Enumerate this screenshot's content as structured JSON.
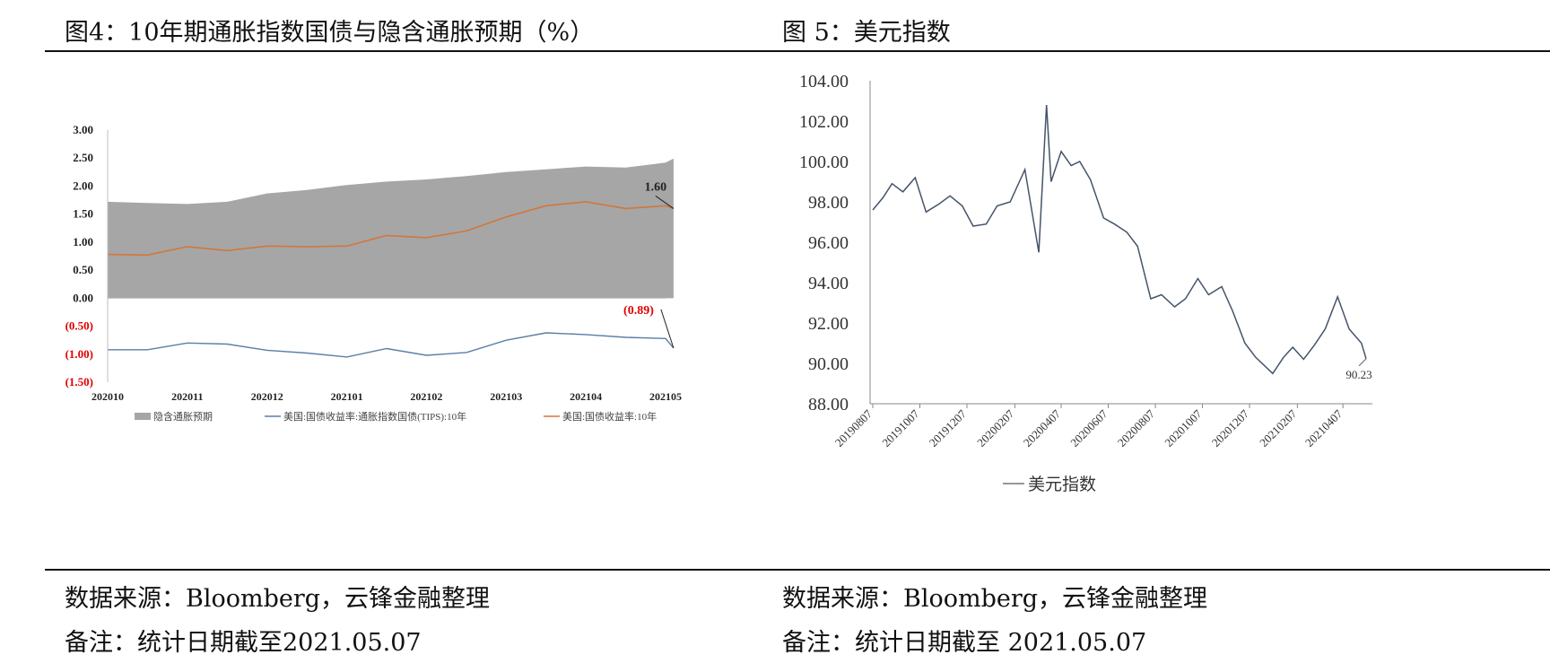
{
  "left": {
    "title": "图4：10年期通胀指数国债与隐含通胀预期（%）",
    "source": "数据来源：Bloomberg，云锋金融整理",
    "remark": "备注：统计日期截至2021.05.07"
  },
  "right": {
    "title": "图 5：美元指数",
    "source": "数据来源：Bloomberg，云锋金融整理",
    "remark": "备注：统计日期截至 2021.05.07"
  },
  "colors": {
    "area": "#a6a6a6",
    "nominal": "#d0783c",
    "tips": "#5b7fa6",
    "dxy": "#44546a",
    "negative_label": "#e00000"
  },
  "chart_data": [
    {
      "type": "area",
      "title": "",
      "ylim": [
        -1.5,
        3.0
      ],
      "y_ticks": [
        "3.00",
        "2.50",
        "2.00",
        "1.50",
        "1.00",
        "0.50",
        "0.00",
        "(0.50)",
        "(1.00)",
        "(1.50)"
      ],
      "x_ticks": [
        "202010",
        "202011",
        "202012",
        "202101",
        "202102",
        "202103",
        "202104",
        "202105"
      ],
      "legend": [
        "隐含通胀预期",
        "美国:国债收益率:通胀指数国债(TIPS):10年",
        "美国:国债收益率:10年"
      ],
      "legend_position": "bottom",
      "annotations": {
        "last_nominal": "1.60",
        "last_tips": "(0.89)"
      },
      "series": [
        {
          "name": "隐含通胀预期",
          "x": [
            "202010",
            "202010.5",
            "202011",
            "202011.5",
            "202012",
            "202012.5",
            "202101",
            "202101.5",
            "202102",
            "202102.5",
            "202103",
            "202103.5",
            "202104",
            "202104.5",
            "202105",
            "202105.1"
          ],
          "values": [
            1.72,
            1.7,
            1.68,
            1.72,
            1.87,
            1.93,
            2.02,
            2.08,
            2.12,
            2.18,
            2.25,
            2.3,
            2.35,
            2.33,
            2.42,
            2.49
          ]
        },
        {
          "name": "美国:国债收益率:10年",
          "x": [
            "202010",
            "202010.5",
            "202011",
            "202011.5",
            "202012",
            "202012.5",
            "202101",
            "202101.5",
            "202102",
            "202102.5",
            "202103",
            "202103.5",
            "202104",
            "202104.5",
            "202105",
            "202105.1"
          ],
          "values": [
            0.78,
            0.77,
            0.92,
            0.85,
            0.93,
            0.92,
            0.93,
            1.12,
            1.08,
            1.2,
            1.45,
            1.65,
            1.72,
            1.6,
            1.65,
            1.6
          ]
        },
        {
          "name": "美国:国债收益率:通胀指数国债(TIPS):10年",
          "x": [
            "202010",
            "202010.5",
            "202011",
            "202011.5",
            "202012",
            "202012.5",
            "202101",
            "202101.5",
            "202102",
            "202102.5",
            "202103",
            "202103.5",
            "202104",
            "202104.5",
            "202105",
            "202105.1"
          ],
          "values": [
            -0.92,
            -0.92,
            -0.8,
            -0.82,
            -0.93,
            -0.98,
            -1.05,
            -0.9,
            -1.02,
            -0.97,
            -0.75,
            -0.62,
            -0.65,
            -0.7,
            -0.72,
            -0.89
          ]
        }
      ]
    },
    {
      "type": "line",
      "title": "",
      "ylim": [
        88.0,
        104.0
      ],
      "y_ticks": [
        "104.00",
        "102.00",
        "100.00",
        "98.00",
        "96.00",
        "94.00",
        "92.00",
        "90.00",
        "88.00"
      ],
      "x_ticks": [
        "20190807",
        "20191007",
        "20191207",
        "20200207",
        "20200407",
        "20200607",
        "20200807",
        "20201007",
        "20201207",
        "20210207",
        "20210407"
      ],
      "legend": [
        "美元指数"
      ],
      "legend_position": "bottom",
      "annotations": {
        "last_value": "90.23"
      },
      "series": [
        {
          "name": "美元指数",
          "x": [
            "2019-08-07",
            "2019-08-20",
            "2019-09-01",
            "2019-09-15",
            "2019-10-01",
            "2019-10-15",
            "2019-11-01",
            "2019-11-15",
            "2019-12-01",
            "2019-12-15",
            "2020-01-01",
            "2020-01-15",
            "2020-02-01",
            "2020-02-20",
            "2020-03-09",
            "2020-03-19",
            "2020-03-25",
            "2020-04-07",
            "2020-04-20",
            "2020-05-01",
            "2020-05-15",
            "2020-06-01",
            "2020-06-15",
            "2020-07-01",
            "2020-07-15",
            "2020-08-01",
            "2020-08-15",
            "2020-09-01",
            "2020-09-15",
            "2020-10-01",
            "2020-10-15",
            "2020-11-01",
            "2020-11-15",
            "2020-12-01",
            "2020-12-15",
            "2021-01-06",
            "2021-01-20",
            "2021-02-01",
            "2021-02-15",
            "2021-03-01",
            "2021-03-15",
            "2021-03-31",
            "2021-04-15",
            "2021-05-01",
            "2021-05-07"
          ],
          "values": [
            97.6,
            98.2,
            98.9,
            98.5,
            99.2,
            97.5,
            97.9,
            98.3,
            97.8,
            96.8,
            96.9,
            97.8,
            98.0,
            99.6,
            95.5,
            102.8,
            99.0,
            100.5,
            99.8,
            100.0,
            99.1,
            97.2,
            96.9,
            96.5,
            95.8,
            93.2,
            93.4,
            92.8,
            93.2,
            94.2,
            93.4,
            93.8,
            92.6,
            91.0,
            90.3,
            89.5,
            90.3,
            90.8,
            90.2,
            90.9,
            91.7,
            93.3,
            91.7,
            91.0,
            90.23
          ]
        }
      ]
    }
  ]
}
